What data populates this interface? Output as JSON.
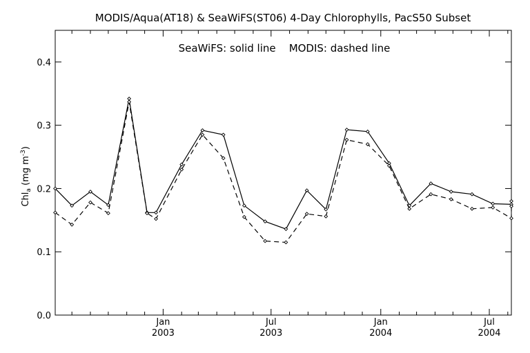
{
  "chart_data": {
    "type": "line",
    "title": "MODIS/Aqua(AT18) & SeaWiFS(ST06) 4-Day Chlorophylls, PacS50 Subset",
    "legend_text": "SeaWiFS: solid line    MODIS: dashed line",
    "ylabel": "Chl",
    "ylabel_sub": "a",
    "ylabel_units": " (mg m",
    "ylabel_units_sup": "-3",
    "ylabel_close": ")",
    "ylim": [
      0.0,
      0.45
    ],
    "y_ticks": [
      {
        "value": 0.0,
        "label": "0.0"
      },
      {
        "value": 0.1,
        "label": "0.1"
      },
      {
        "value": 0.2,
        "label": "0.2"
      },
      {
        "value": 0.3,
        "label": "0.3"
      },
      {
        "value": 0.4,
        "label": "0.4"
      }
    ],
    "xlim": [
      "2002-07-04",
      "2004-08-07"
    ],
    "x_major_ticks": [
      {
        "date": "2003-01-01",
        "label1": "Jan",
        "label2": "2003"
      },
      {
        "date": "2003-07-01",
        "label1": "Jul",
        "label2": "2003"
      },
      {
        "date": "2004-01-01",
        "label1": "Jan",
        "label2": "2004"
      },
      {
        "date": "2004-07-01",
        "label1": "Jul",
        "label2": "2004"
      }
    ],
    "x_minor_ticks": [
      "2002-08-01",
      "2002-09-01",
      "2002-10-01",
      "2002-11-01",
      "2002-12-01",
      "2003-02-01",
      "2003-03-01",
      "2003-04-01",
      "2003-05-01",
      "2003-06-01",
      "2003-08-01",
      "2003-09-01",
      "2003-10-01",
      "2003-11-01",
      "2003-12-01",
      "2004-02-01",
      "2004-03-01",
      "2004-04-01",
      "2004-05-01",
      "2004-06-01",
      "2004-08-01"
    ],
    "series": [
      {
        "style": "solid",
        "points": [
          {
            "x": "2002-07-04",
            "y": 0.2
          },
          {
            "x": "2002-08-01",
            "y": 0.173
          },
          {
            "x": "2002-09-01",
            "y": 0.195
          },
          {
            "x": "2002-10-01",
            "y": 0.174
          },
          {
            "x": "2002-11-05",
            "y": 0.342
          },
          {
            "x": "2002-12-05",
            "y": 0.162
          },
          {
            "x": "2002-12-20",
            "y": 0.162
          },
          {
            "x": "2003-02-01",
            "y": 0.238
          },
          {
            "x": "2003-03-08",
            "y": 0.292
          },
          {
            "x": "2003-04-12",
            "y": 0.285
          },
          {
            "x": "2003-05-17",
            "y": 0.173
          },
          {
            "x": "2003-06-21",
            "y": 0.148
          },
          {
            "x": "2003-07-26",
            "y": 0.136
          },
          {
            "x": "2003-08-30",
            "y": 0.197
          },
          {
            "x": "2003-10-01",
            "y": 0.167
          },
          {
            "x": "2003-11-05",
            "y": 0.293
          },
          {
            "x": "2003-12-10",
            "y": 0.29
          },
          {
            "x": "2004-01-15",
            "y": 0.24
          },
          {
            "x": "2004-02-18",
            "y": 0.173
          },
          {
            "x": "2004-03-25",
            "y": 0.208
          },
          {
            "x": "2004-04-28",
            "y": 0.195
          },
          {
            "x": "2004-06-02",
            "y": 0.191
          },
          {
            "x": "2004-07-07",
            "y": 0.176
          },
          {
            "x": "2004-08-07",
            "y": 0.175
          },
          {
            "x": "2004-08-07",
            "y": 0.18
          }
        ]
      },
      {
        "style": "dashed",
        "points": [
          {
            "x": "2002-07-04",
            "y": 0.162
          },
          {
            "x": "2002-08-01",
            "y": 0.143
          },
          {
            "x": "2002-09-01",
            "y": 0.178
          },
          {
            "x": "2002-10-01",
            "y": 0.161
          },
          {
            "x": "2002-11-05",
            "y": 0.337
          },
          {
            "x": "2002-12-05",
            "y": 0.161
          },
          {
            "x": "2002-12-20",
            "y": 0.152
          },
          {
            "x": "2003-02-01",
            "y": 0.23
          },
          {
            "x": "2003-03-08",
            "y": 0.285
          },
          {
            "x": "2003-04-12",
            "y": 0.248
          },
          {
            "x": "2003-05-17",
            "y": 0.155
          },
          {
            "x": "2003-06-21",
            "y": 0.117
          },
          {
            "x": "2003-07-26",
            "y": 0.115
          },
          {
            "x": "2003-08-30",
            "y": 0.16
          },
          {
            "x": "2003-10-01",
            "y": 0.156
          },
          {
            "x": "2003-11-05",
            "y": 0.277
          },
          {
            "x": "2003-12-10",
            "y": 0.27
          },
          {
            "x": "2004-01-15",
            "y": 0.236
          },
          {
            "x": "2004-02-18",
            "y": 0.168
          },
          {
            "x": "2004-03-25",
            "y": 0.191
          },
          {
            "x": "2004-04-28",
            "y": 0.183
          },
          {
            "x": "2004-06-02",
            "y": 0.168
          },
          {
            "x": "2004-07-07",
            "y": 0.17
          },
          {
            "x": "2004-08-07",
            "y": 0.153
          },
          {
            "x": "2004-08-07",
            "y": 0.172
          }
        ]
      }
    ],
    "grid": false,
    "colors": {
      "line": "#000000",
      "background": "#ffffff"
    }
  }
}
